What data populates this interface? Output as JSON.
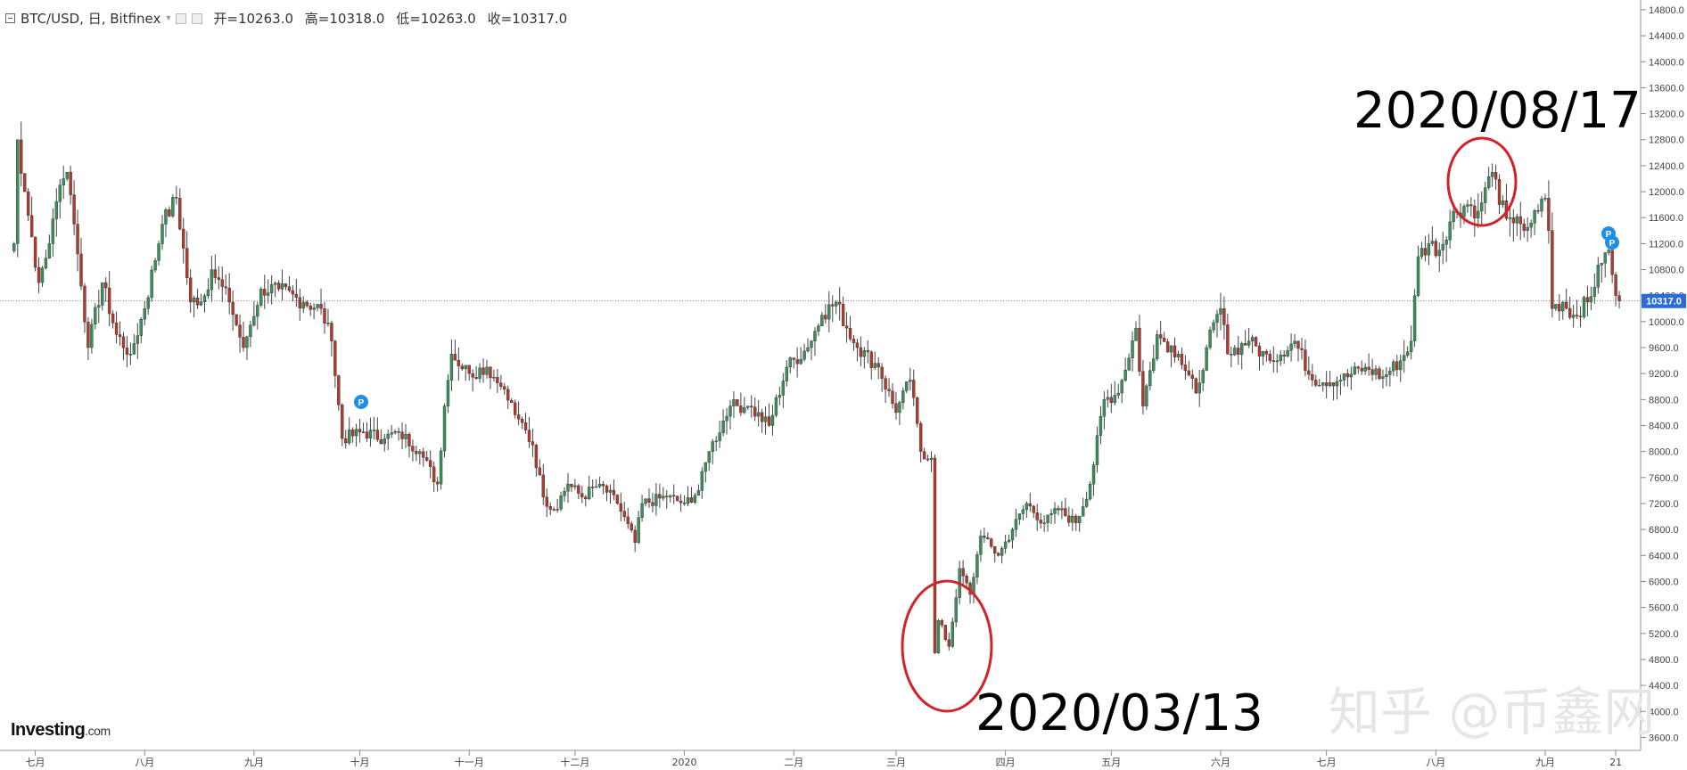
{
  "header": {
    "symbol": "BTC/USD, 日, Bitfinex",
    "open": "开=10263.0",
    "high": "高=10318.0",
    "low": "低=10263.0",
    "close": "收=10317.0"
  },
  "logo": {
    "name": "Investing",
    "suffix": ".com"
  },
  "annotations": {
    "top": "2020/08/17",
    "bottom": "2020/03/13"
  },
  "watermark": "知乎 @币鑫网",
  "price_badge": "10317.0",
  "colors": {
    "up": "#3a8f5a",
    "down": "#b03a2e",
    "circle": "#d2232a",
    "badge": "#2a6ad9",
    "axis": "#666666"
  },
  "chart_data": {
    "type": "candlestick",
    "title": "",
    "xlabel": "",
    "ylabel": "",
    "ylim": [
      3400,
      14900
    ],
    "x_ticks": [
      "七月",
      "八月",
      "九月",
      "十月",
      "十一月",
      "十二月",
      "2020",
      "二月",
      "三月",
      "四月",
      "五月",
      "六月",
      "七月",
      "八月",
      "九月",
      "21"
    ],
    "y_ticks": [
      3600,
      4000,
      4400,
      4800,
      5200,
      5600,
      6000,
      6400,
      6800,
      7200,
      7600,
      8000,
      8400,
      8800,
      9200,
      9600,
      10000,
      10400,
      10800,
      11200,
      11600,
      12000,
      12400,
      12800,
      13200,
      13600,
      14000,
      14400,
      14800
    ],
    "last_close": 10317,
    "close_series": [
      {
        "t": "2019-06-25",
        "v": 11200
      },
      {
        "t": "2019-06-26",
        "v": 12800
      },
      {
        "t": "2019-06-28",
        "v": 12000
      },
      {
        "t": "2019-07-02",
        "v": 10600
      },
      {
        "t": "2019-07-05",
        "v": 11200
      },
      {
        "t": "2019-07-08",
        "v": 12100
      },
      {
        "t": "2019-07-10",
        "v": 12300
      },
      {
        "t": "2019-07-12",
        "v": 11500
      },
      {
        "t": "2019-07-16",
        "v": 9600
      },
      {
        "t": "2019-07-20",
        "v": 10600
      },
      {
        "t": "2019-07-24",
        "v": 9800
      },
      {
        "t": "2019-07-28",
        "v": 9500
      },
      {
        "t": "2019-08-01",
        "v": 10200
      },
      {
        "t": "2019-08-06",
        "v": 11500
      },
      {
        "t": "2019-08-10",
        "v": 11900
      },
      {
        "t": "2019-08-14",
        "v": 10300
      },
      {
        "t": "2019-08-18",
        "v": 10400
      },
      {
        "t": "2019-08-20",
        "v": 10800
      },
      {
        "t": "2019-08-25",
        "v": 10300
      },
      {
        "t": "2019-08-29",
        "v": 9600
      },
      {
        "t": "2019-09-03",
        "v": 10500
      },
      {
        "t": "2019-09-08",
        "v": 10500
      },
      {
        "t": "2019-09-15",
        "v": 10300
      },
      {
        "t": "2019-09-20",
        "v": 10200
      },
      {
        "t": "2019-09-23",
        "v": 9700
      },
      {
        "t": "2019-09-26",
        "v": 8200
      },
      {
        "t": "2019-10-02",
        "v": 8300
      },
      {
        "t": "2019-10-08",
        "v": 8200
      },
      {
        "t": "2019-10-12",
        "v": 8300
      },
      {
        "t": "2019-10-18",
        "v": 8000
      },
      {
        "t": "2019-10-23",
        "v": 7500
      },
      {
        "t": "2019-10-25",
        "v": 8700
      },
      {
        "t": "2019-10-27",
        "v": 9500
      },
      {
        "t": "2019-11-01",
        "v": 9200
      },
      {
        "t": "2019-11-06",
        "v": 9300
      },
      {
        "t": "2019-11-10",
        "v": 9000
      },
      {
        "t": "2019-11-15",
        "v": 8500
      },
      {
        "t": "2019-11-19",
        "v": 8100
      },
      {
        "t": "2019-11-22",
        "v": 7300
      },
      {
        "t": "2019-11-25",
        "v": 7100
      },
      {
        "t": "2019-11-29",
        "v": 7500
      },
      {
        "t": "2019-12-03",
        "v": 7300
      },
      {
        "t": "2019-12-08",
        "v": 7500
      },
      {
        "t": "2019-12-13",
        "v": 7200
      },
      {
        "t": "2019-12-18",
        "v": 6600
      },
      {
        "t": "2019-12-20",
        "v": 7200
      },
      {
        "t": "2019-12-27",
        "v": 7300
      },
      {
        "t": "2020-01-01",
        "v": 7200
      },
      {
        "t": "2020-01-05",
        "v": 7400
      },
      {
        "t": "2020-01-08",
        "v": 8000
      },
      {
        "t": "2020-01-14",
        "v": 8700
      },
      {
        "t": "2020-01-19",
        "v": 8700
      },
      {
        "t": "2020-01-25",
        "v": 8400
      },
      {
        "t": "2020-01-30",
        "v": 9300
      },
      {
        "t": "2020-02-05",
        "v": 9600
      },
      {
        "t": "2020-02-09",
        "v": 10100
      },
      {
        "t": "2020-02-13",
        "v": 10300
      },
      {
        "t": "2020-02-16",
        "v": 9900
      },
      {
        "t": "2020-02-19",
        "v": 9600
      },
      {
        "t": "2020-02-25",
        "v": 9300
      },
      {
        "t": "2020-03-01",
        "v": 8600
      },
      {
        "t": "2020-03-05",
        "v": 9100
      },
      {
        "t": "2020-03-08",
        "v": 8000
      },
      {
        "t": "2020-03-11",
        "v": 7900
      },
      {
        "t": "2020-03-12",
        "v": 4900
      },
      {
        "t": "2020-03-13",
        "v": 5400
      },
      {
        "t": "2020-03-16",
        "v": 5000
      },
      {
        "t": "2020-03-19",
        "v": 6200
      },
      {
        "t": "2020-03-22",
        "v": 5800
      },
      {
        "t": "2020-03-25",
        "v": 6700
      },
      {
        "t": "2020-03-30",
        "v": 6400
      },
      {
        "t": "2020-04-03",
        "v": 6800
      },
      {
        "t": "2020-04-07",
        "v": 7200
      },
      {
        "t": "2020-04-12",
        "v": 6900
      },
      {
        "t": "2020-04-16",
        "v": 7100
      },
      {
        "t": "2020-04-21",
        "v": 6900
      },
      {
        "t": "2020-04-25",
        "v": 7500
      },
      {
        "t": "2020-04-29",
        "v": 8800
      },
      {
        "t": "2020-05-03",
        "v": 8900
      },
      {
        "t": "2020-05-08",
        "v": 9900
      },
      {
        "t": "2020-05-10",
        "v": 8700
      },
      {
        "t": "2020-05-14",
        "v": 9800
      },
      {
        "t": "2020-05-20",
        "v": 9500
      },
      {
        "t": "2020-05-25",
        "v": 8900
      },
      {
        "t": "2020-05-28",
        "v": 9600
      },
      {
        "t": "2020-06-01",
        "v": 10200
      },
      {
        "t": "2020-06-03",
        "v": 9500
      },
      {
        "t": "2020-06-09",
        "v": 9700
      },
      {
        "t": "2020-06-15",
        "v": 9400
      },
      {
        "t": "2020-06-22",
        "v": 9700
      },
      {
        "t": "2020-06-27",
        "v": 9100
      },
      {
        "t": "2020-07-05",
        "v": 9100
      },
      {
        "t": "2020-07-12",
        "v": 9300
      },
      {
        "t": "2020-07-17",
        "v": 9150
      },
      {
        "t": "2020-07-22",
        "v": 9400
      },
      {
        "t": "2020-07-25",
        "v": 9700
      },
      {
        "t": "2020-07-27",
        "v": 11000
      },
      {
        "t": "2020-07-30",
        "v": 11200
      },
      {
        "t": "2020-08-02",
        "v": 11100
      },
      {
        "t": "2020-08-06",
        "v": 11700
      },
      {
        "t": "2020-08-10",
        "v": 11800
      },
      {
        "t": "2020-08-13",
        "v": 11700
      },
      {
        "t": "2020-08-17",
        "v": 12300
      },
      {
        "t": "2020-08-19",
        "v": 11800
      },
      {
        "t": "2020-08-22",
        "v": 11600
      },
      {
        "t": "2020-08-26",
        "v": 11400
      },
      {
        "t": "2020-08-30",
        "v": 11700
      },
      {
        "t": "2020-09-01",
        "v": 11900
      },
      {
        "t": "2020-09-02",
        "v": 11400
      },
      {
        "t": "2020-09-03",
        "v": 10200
      },
      {
        "t": "2020-09-06",
        "v": 10300
      },
      {
        "t": "2020-09-09",
        "v": 10100
      },
      {
        "t": "2020-09-13",
        "v": 10300
      },
      {
        "t": "2020-09-17",
        "v": 10900
      },
      {
        "t": "2020-09-19",
        "v": 11100
      },
      {
        "t": "2020-09-21",
        "v": 10400
      },
      {
        "t": "2020-09-22",
        "v": 10317
      }
    ]
  }
}
